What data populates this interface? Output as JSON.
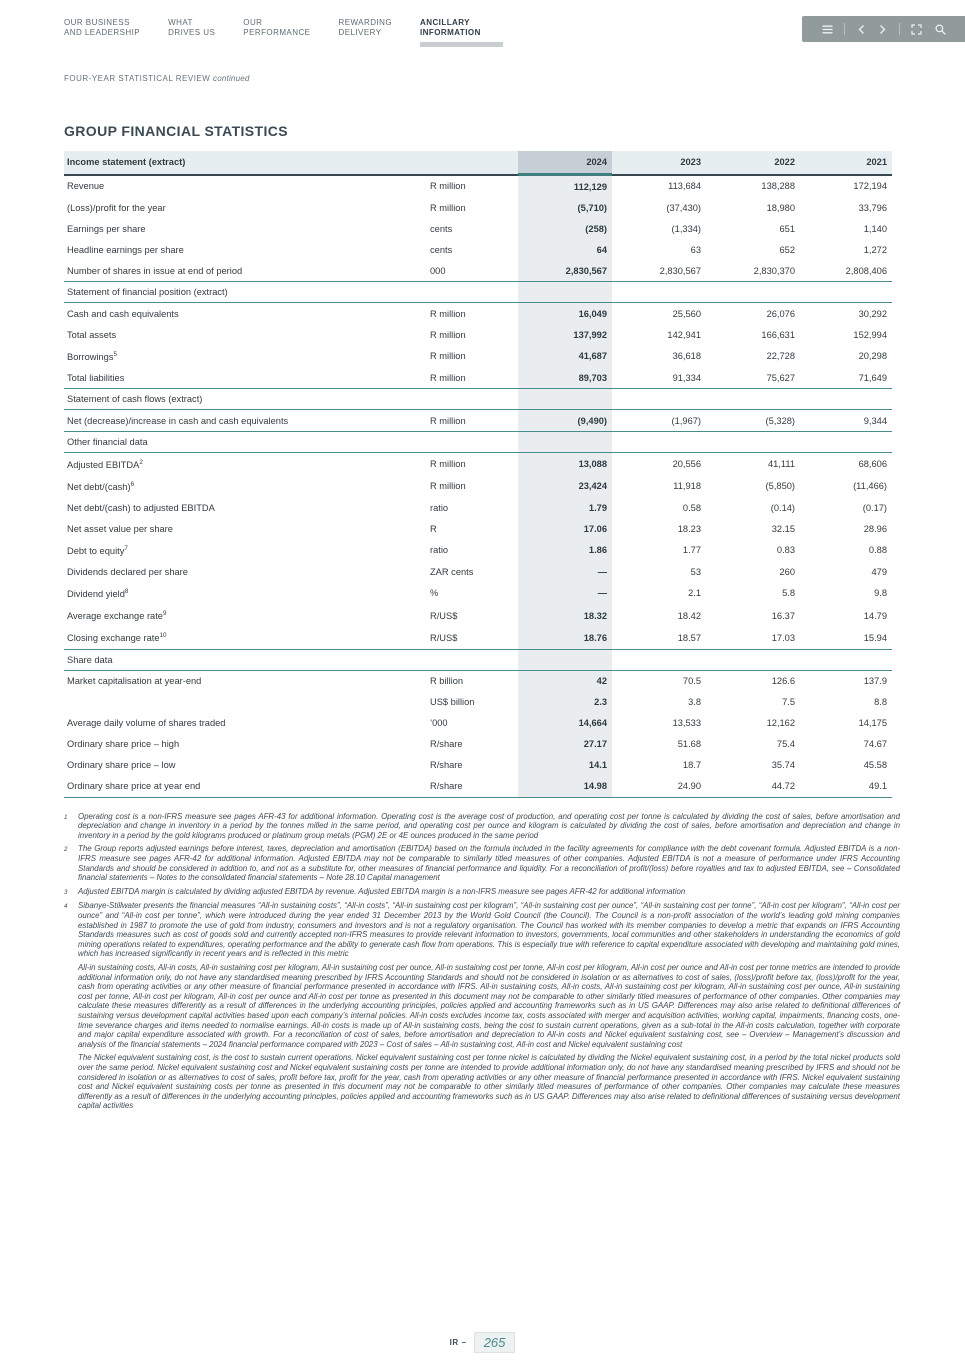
{
  "nav": {
    "items": [
      {
        "id": "our-business-and-leadership",
        "lines": [
          "OUR BUSINESS",
          "AND LEADERSHIP"
        ],
        "active": false
      },
      {
        "id": "what-drives-us",
        "lines": [
          "WHAT",
          "DRIVES US"
        ],
        "active": false
      },
      {
        "id": "our-performance",
        "lines": [
          "OUR",
          "PERFORMANCE"
        ],
        "active": false
      },
      {
        "id": "rewarding-delivery",
        "lines": [
          "REWARDING",
          "DELIVERY"
        ],
        "active": false
      },
      {
        "id": "ancillary-information",
        "lines": [
          "ANCILLARY",
          "INFORMATION"
        ],
        "active": true
      }
    ],
    "icons": [
      "menu-icon",
      "chevron-left-icon",
      "chevron-right-icon",
      "expand-icon",
      "search-icon"
    ]
  },
  "breadcrumb": {
    "text": "FOUR-YEAR STATISTICAL REVIEW ",
    "suffix": "continued"
  },
  "page_title": "GROUP FINANCIAL STATISTICS",
  "colors": {
    "accent": "#4A8C8C",
    "highlight_column": "#E9EDEF",
    "highlight_header": "#C5CFD5",
    "header_row": "#E7EEF1",
    "toolbar": "#909B9A"
  },
  "table": {
    "header": {
      "label": "Income statement (extract)",
      "years": [
        "2024",
        "2023",
        "2022",
        "2021"
      ]
    },
    "highlight_year": "2024",
    "rows": [
      {
        "type": "data",
        "label": "Revenue",
        "sup": "",
        "unit": "R million",
        "values": [
          "112,129",
          "113,684",
          "138,288",
          "172,194"
        ]
      },
      {
        "type": "data",
        "label": "(Loss)/profit for the year",
        "sup": "",
        "unit": "R million",
        "values": [
          "(5,710)",
          "(37,430)",
          "18,980",
          "33,796"
        ]
      },
      {
        "type": "data",
        "label": "Earnings per share",
        "sup": "",
        "unit": "cents",
        "values": [
          "(258)",
          "(1,334)",
          "651",
          "1,140"
        ]
      },
      {
        "type": "data",
        "label": "Headline earnings per share",
        "sup": "",
        "unit": "cents",
        "values": [
          "64",
          "63",
          "652",
          "1,272"
        ]
      },
      {
        "type": "data",
        "label": "Number of shares in issue at end of period",
        "sup": "",
        "unit": "000",
        "values": [
          "2,830,567",
          "2,830,567",
          "2,830,370",
          "2,808,406"
        ]
      },
      {
        "type": "section",
        "label": "Statement of financial position (extract)"
      },
      {
        "type": "data",
        "label": "Cash and cash equivalents",
        "sup": "",
        "unit": "R million",
        "values": [
          "16,049",
          "25,560",
          "26,076",
          "30,292"
        ]
      },
      {
        "type": "data",
        "label": "Total assets",
        "sup": "",
        "unit": "R million",
        "values": [
          "137,992",
          "142,941",
          "166,631",
          "152,994"
        ]
      },
      {
        "type": "data",
        "label": "Borrowings",
        "sup": "5",
        "unit": "R million",
        "values": [
          "41,687",
          "36,618",
          "22,728",
          "20,298"
        ]
      },
      {
        "type": "data",
        "label": "Total liabilities",
        "sup": "",
        "unit": "R million",
        "values": [
          "89,703",
          "91,334",
          "75,627",
          "71,649"
        ]
      },
      {
        "type": "section",
        "label": "Statement of cash flows (extract)"
      },
      {
        "type": "data",
        "label": "Net (decrease)/increase in cash and cash equivalents",
        "sup": "",
        "unit": "R million",
        "values": [
          "(9,490)",
          "(1,967)",
          "(5,328)",
          "9,344"
        ]
      },
      {
        "type": "section",
        "label": "Other financial data"
      },
      {
        "type": "data",
        "label": "Adjusted EBITDA",
        "sup": "2",
        "unit": "R million",
        "values": [
          "13,088",
          "20,556",
          "41,111",
          "68,606"
        ]
      },
      {
        "type": "data",
        "label": "Net debt/(cash)",
        "sup": "6",
        "unit": "R million",
        "values": [
          "23,424",
          "11,918",
          "(5,850)",
          "(11,466)"
        ]
      },
      {
        "type": "data",
        "label": "Net debt/(cash) to adjusted EBITDA",
        "sup": "",
        "unit": "ratio",
        "values": [
          "1.79",
          "0.58",
          "(0.14)",
          "(0.17)"
        ]
      },
      {
        "type": "data",
        "label": "Net asset value per share",
        "sup": "",
        "unit": "R",
        "values": [
          "17.06",
          "18.23",
          "32.15",
          "28.96"
        ]
      },
      {
        "type": "data",
        "label": "Debt to equity",
        "sup": "7",
        "unit": "ratio",
        "values": [
          "1.86",
          "1.77",
          "0.83",
          "0.88"
        ]
      },
      {
        "type": "data",
        "label": "Dividends declared per share",
        "sup": "",
        "unit": "ZAR cents",
        "values": [
          "—",
          "53",
          "260",
          "479"
        ]
      },
      {
        "type": "data",
        "label": "Dividend yield",
        "sup": "8",
        "unit": "%",
        "values": [
          "—",
          "2.1",
          "5.8",
          "9.8"
        ]
      },
      {
        "type": "data",
        "label": "Average exchange rate",
        "sup": "9",
        "unit": "R/US$",
        "values": [
          "18.32",
          "18.42",
          "16.37",
          "14.79"
        ]
      },
      {
        "type": "data",
        "label": "Closing exchange rate",
        "sup": "10",
        "unit": "R/US$",
        "values": [
          "18.76",
          "18.57",
          "17.03",
          "15.94"
        ]
      },
      {
        "type": "section",
        "label": "Share data"
      },
      {
        "type": "data",
        "label": "Market capitalisation at year-end",
        "sup": "",
        "unit": "R billion",
        "values": [
          "42",
          "70.5",
          "126.6",
          "137.9"
        ]
      },
      {
        "type": "data",
        "label": "",
        "sup": "",
        "unit": "US$ billion",
        "values": [
          "2.3",
          "3.8",
          "7.5",
          "8.8"
        ]
      },
      {
        "type": "data",
        "label": "Average daily volume of shares traded",
        "sup": "",
        "unit": "’000",
        "values": [
          "14,664",
          "13,533",
          "12,162",
          "14,175"
        ]
      },
      {
        "type": "data",
        "label": "Ordinary share price – high",
        "sup": "",
        "unit": "R/share",
        "values": [
          "27.17",
          "51.68",
          "75.4",
          "74.67"
        ]
      },
      {
        "type": "data",
        "label": "Ordinary share price – low",
        "sup": "",
        "unit": "R/share",
        "values": [
          "14.1",
          "18.7",
          "35.74",
          "45.58"
        ]
      },
      {
        "type": "data",
        "label": "Ordinary share price at year end",
        "sup": "",
        "unit": "R/share",
        "values": [
          "14.98",
          "24.90",
          "44.72",
          "49.1"
        ]
      }
    ]
  },
  "footnotes": [
    {
      "marker": "1",
      "text": "Operating cost is a non-IFRS measure see pages AFR-43 for additional information. Operating cost is the average cost of production, and operating cost per tonne is calculated by dividing the cost of sales, before amortisation and depreciation and change in inventory in a period by the tonnes milled in the same period, and operating cost per ounce and kilogram is calculated by dividing the cost of sales, before amortisation and depreciation and change in inventory in a period by the gold kilograms produced or platinum group metals (PGM) 2E or 4E ounces produced in the same period"
    },
    {
      "marker": "2",
      "text": "The Group reports adjusted earnings before interest, taxes, depreciation and amortisation (EBITDA) based on the formula included in the facility agreements for compliance with the debt covenant formula. Adjusted EBITDA is a non-IFRS measure see pages AFR-42 for additional information. Adjusted EBITDA may not be comparable to similarly titled measures of other companies. Adjusted EBITDA is not a measure of performance under IFRS Accounting Standards and should be considered in addition to, and not as a substitute for, other measures of financial performance and liquidity. For a reconciliation of profit/(loss) before royalties and tax to adjusted EBITDA, see – Consolidated financial statements – Notes to the consolidated financial statements – Note 28.10 Capital management"
    },
    {
      "marker": "3",
      "text": "Adjusted EBITDA margin is calculated by dividing adjusted EBITDA by revenue. Adjusted EBITDA margin is a non-IFRS measure see pages AFR-42 for additional information"
    },
    {
      "marker": "4",
      "text": "Sibanye-Stillwater presents the financial measures “All-in sustaining costs”, “All-in costs”, “All-in sustaining cost per kilogram”, “All-in sustaining cost per ounce”, “All-in sustaining cost per tonne”, “All-in cost per kilogram”, “All-in cost per ounce” and “All-in cost per tonne”, which were introduced during the year ended 31 December 2013 by the World Gold Council (the Council). The Council is a non-profit association of the world’s leading gold mining companies established in 1987 to promote the use of gold from industry, consumers and investors and is not a regulatory organisation. The Council has worked with its member companies to develop a metric that expands on IFRS Accounting Standards measures such as cost of goods sold and currently accepted non-IFRS measures to provide relevant information to investors, governments, local communities and other stakeholders in understanding the economics of gold mining operations related to expenditures, operating performance and the ability to generate cash flow from operations. This is especially true with reference to capital expenditure associated with developing and maintaining gold mines, which has increased significantly in recent years and is reflected in this metric"
    },
    {
      "marker": "",
      "text": "All-in sustaining costs, All-in costs, All-in sustaining cost per kilogram, All-in sustaining cost per ounce, All-in sustaining cost per tonne, All-in cost per kilogram, All-in cost per ounce and All-in cost per tonne  metrics are intended to provide additional information only, do not have any standardised meaning prescribed by IFRS Accounting Standards and should not be considered in isolation or as alternatives to cost of sales, (loss)/profit before tax, (loss)/profit for the year, cash from operating activities or any other measure of financial performance presented in accordance with IFRS. All-in sustaining costs, All-in costs, All-in sustaining cost per kilogram, All-in sustaining cost per ounce, All-in sustaining cost per tonne,  All-in cost per kilogram, All-in cost per ounce and All-in cost per tonne as presented in this document may not be comparable to other similarly titled measures of performance of other companies. Other companies may calculate these measures differently as a result of differences in the underlying accounting principles, policies applied and accounting frameworks such as in US GAAP. Differences may also arise related to definitional differences of sustaining versus development capital activities based upon each company’s internal policies. All-in costs excludes income tax, costs associated with merger and acquisition activities, working capital, impairments, financing costs, one-time severance charges and items needed to normalise earnings. All-in costs is made up of All-in sustaining costs, being the cost to sustain current operations, given as a sub-total in the All-in costs calculation, together with corporate and major capital expenditure associated with growth. For a reconciliation of cost of sales, before amortisation and depreciation to All-in costs and Nickel equivalent sustaining cost, see – Overview – Management’s discussion and analysis of the financial statements – 2024 financial performance compared with 2023 – Cost of sales – All-in sustaining cost, All-in cost and Nickel equivalent sustaining cost"
    },
    {
      "marker": "",
      "text": "The Nickel equivalent sustaining cost, is the cost to sustain current operations. Nickel equivalent sustaining cost per tonne nickel is calculated by dividing the Nickel equivalent sustaining cost, in a period by the total nickel products sold over the same period. Nickel equivalent sustaining cost and Nickel equivalent sustaining costs per tonne are intended to provide additional information only, do not have any standardised meaning prescribed by IFRS and should not be considered in isolation or as alternatives to cost of sales, profit before tax, profit for the year, cash from operating activities or any other measure of financial performance presented in accordance with IFRS. Nickel equivalent sustaining cost and Nickel equivalent sustaining costs per tonne as presented in this document may not be comparable to other similarly titled measures of performance of other companies. Other companies may calculate these measures differently as a result of differences in the underlying accounting principles, policies applied and accounting frameworks such as in US GAAP. Differences may also arise related to definitional differences of sustaining versus development capital activities"
    }
  ],
  "footer": {
    "label": "IR –",
    "page": "265"
  }
}
